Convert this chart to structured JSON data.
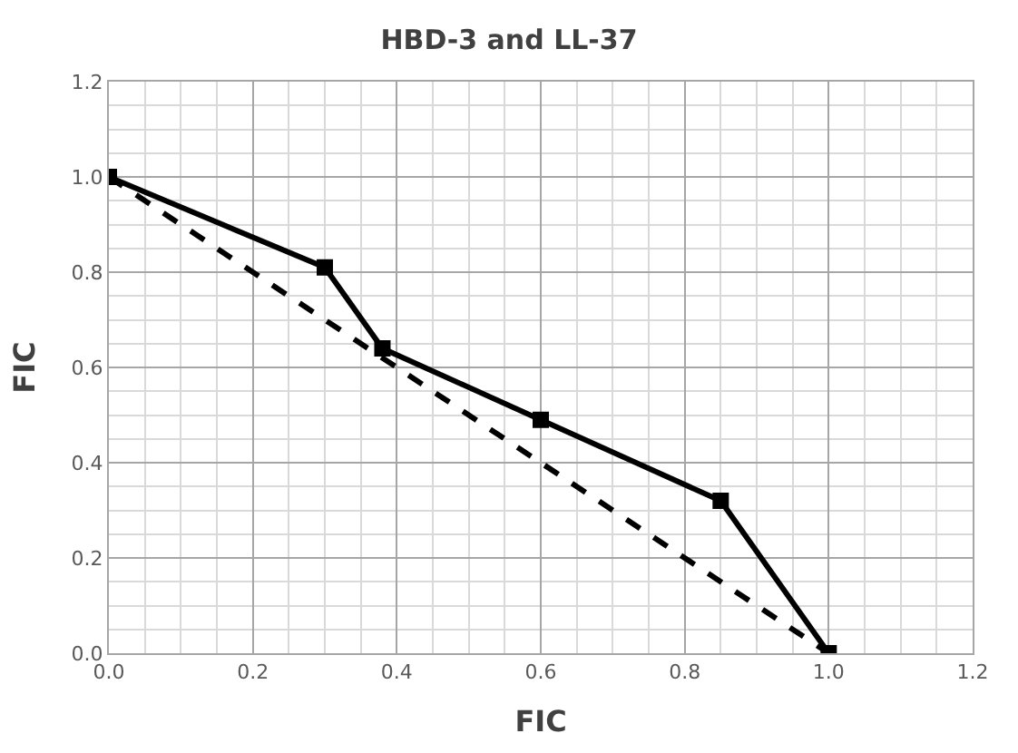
{
  "chart_data": {
    "type": "line",
    "title": "HBD-3 and LL-37",
    "xlabel": "FIC",
    "ylabel": "FIC",
    "xlim": [
      0,
      1.2
    ],
    "xticks": [
      {
        "value": 0,
        "label": "0.0"
      },
      0.2,
      0.4,
      0.6,
      0.8,
      {
        "value": 1,
        "label": "1.0"
      },
      1.2
    ],
    "ylim": [
      0,
      1.2
    ],
    "yticks": [
      {
        "value": 0,
        "label": "0.0"
      },
      0.2,
      0.4,
      0.6,
      0.8,
      {
        "value": 1,
        "label": "1.0"
      },
      1.2
    ],
    "grid": true,
    "series": [
      {
        "color": "#000000",
        "x": [
          0,
          0.3,
          0.38,
          0.6,
          0.85,
          1
        ],
        "values": [
          1,
          0.81,
          0.64,
          0.49,
          0.32,
          0
        ],
        "marker": "square",
        "line_style": "solid"
      },
      {
        "color": "#000000",
        "x": [
          0,
          1
        ],
        "values": [
          1,
          0
        ],
        "marker": "none",
        "line_style": "dashed"
      }
    ]
  }
}
